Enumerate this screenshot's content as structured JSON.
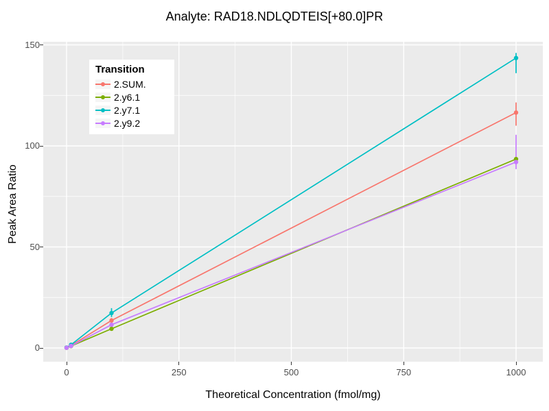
{
  "chart_data": {
    "type": "line",
    "title": "Analyte: RAD18.NDLQDTEIS[+80.0]PR",
    "xlabel": "Theoretical Concentration (fmol/mg)",
    "ylabel": "Peak Area Ratio",
    "legend_title": "Transition",
    "legend_position": "inside-top-left",
    "xlim": [
      -52,
      1059
    ],
    "ylim": [
      -7,
      151.5
    ],
    "xticks": [
      0,
      250,
      500,
      750,
      1000
    ],
    "yticks": [
      0,
      50,
      100,
      150
    ],
    "grid": "on",
    "panel_bg": "#EBEBEB",
    "grid_color": "#FFFFFF",
    "tick_label_color": "#4D4D4D",
    "series": [
      {
        "name": "2.SUM.",
        "color": "#F8766D",
        "x": [
          0,
          10,
          100,
          1000
        ],
        "y": [
          0.2,
          1.2,
          13.6,
          116.5
        ],
        "err_lo": [
          0.2,
          1.2,
          12.2,
          110.0
        ],
        "err_hi": [
          0.2,
          1.2,
          14.8,
          121.5
        ]
      },
      {
        "name": "2.y6.1",
        "color": "#7CAE00",
        "x": [
          0,
          10,
          100,
          1000
        ],
        "y": [
          0.1,
          0.95,
          9.5,
          93.5
        ],
        "err_lo": [
          0.1,
          0.95,
          9.0,
          93.5
        ],
        "err_hi": [
          0.1,
          0.95,
          10.0,
          93.5
        ]
      },
      {
        "name": "2.y7.1",
        "color": "#00BFC4",
        "x": [
          0,
          10,
          100,
          1000
        ],
        "y": [
          0.2,
          1.6,
          17.3,
          143.5
        ],
        "err_lo": [
          0.2,
          1.6,
          15.3,
          136.0
        ],
        "err_hi": [
          0.2,
          1.6,
          19.7,
          146.0
        ]
      },
      {
        "name": "2.y9.2",
        "color": "#C77CFF",
        "x": [
          0,
          10,
          100,
          1000
        ],
        "y": [
          0.1,
          1.0,
          11.5,
          92.0
        ],
        "err_lo": [
          0.1,
          1.0,
          11.0,
          88.5
        ],
        "err_hi": [
          0.1,
          1.0,
          12.0,
          105.5
        ]
      }
    ]
  }
}
